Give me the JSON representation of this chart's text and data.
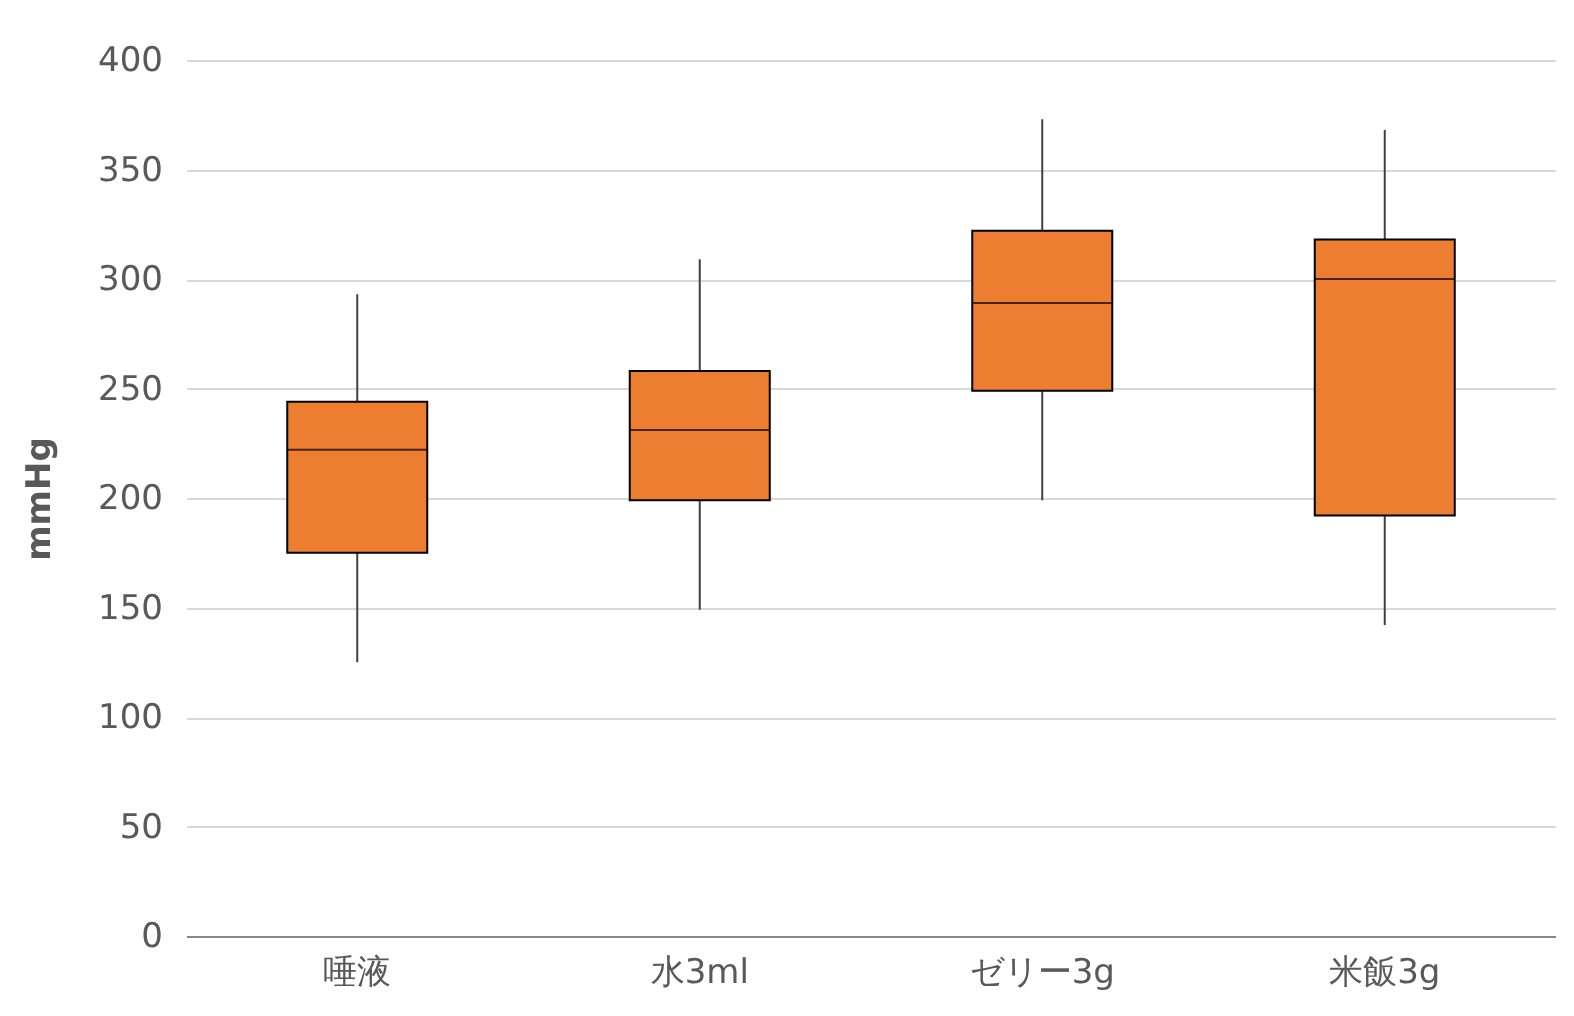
{
  "chart_data": {
    "type": "box",
    "ylabel": "mmHg",
    "categories": [
      "唾液",
      "水3ml",
      "ゼリー3g",
      "米飯3g"
    ],
    "series": [
      {
        "color": "#ed7d31",
        "boxes": [
          {
            "low": 125,
            "q1": 175,
            "median": 222,
            "q3": 244,
            "high": 293
          },
          {
            "low": 149,
            "q1": 199,
            "median": 231,
            "q3": 258,
            "high": 309
          },
          {
            "low": 199,
            "q1": 249,
            "median": 289,
            "q3": 322,
            "high": 373
          },
          {
            "low": 142,
            "q1": 192,
            "median": 300,
            "q3": 318,
            "high": 368
          }
        ]
      }
    ],
    "ylim": [
      0,
      400
    ],
    "yticks": [
      0,
      50,
      100,
      150,
      200,
      250,
      300,
      350,
      400
    ],
    "grid": "y"
  }
}
